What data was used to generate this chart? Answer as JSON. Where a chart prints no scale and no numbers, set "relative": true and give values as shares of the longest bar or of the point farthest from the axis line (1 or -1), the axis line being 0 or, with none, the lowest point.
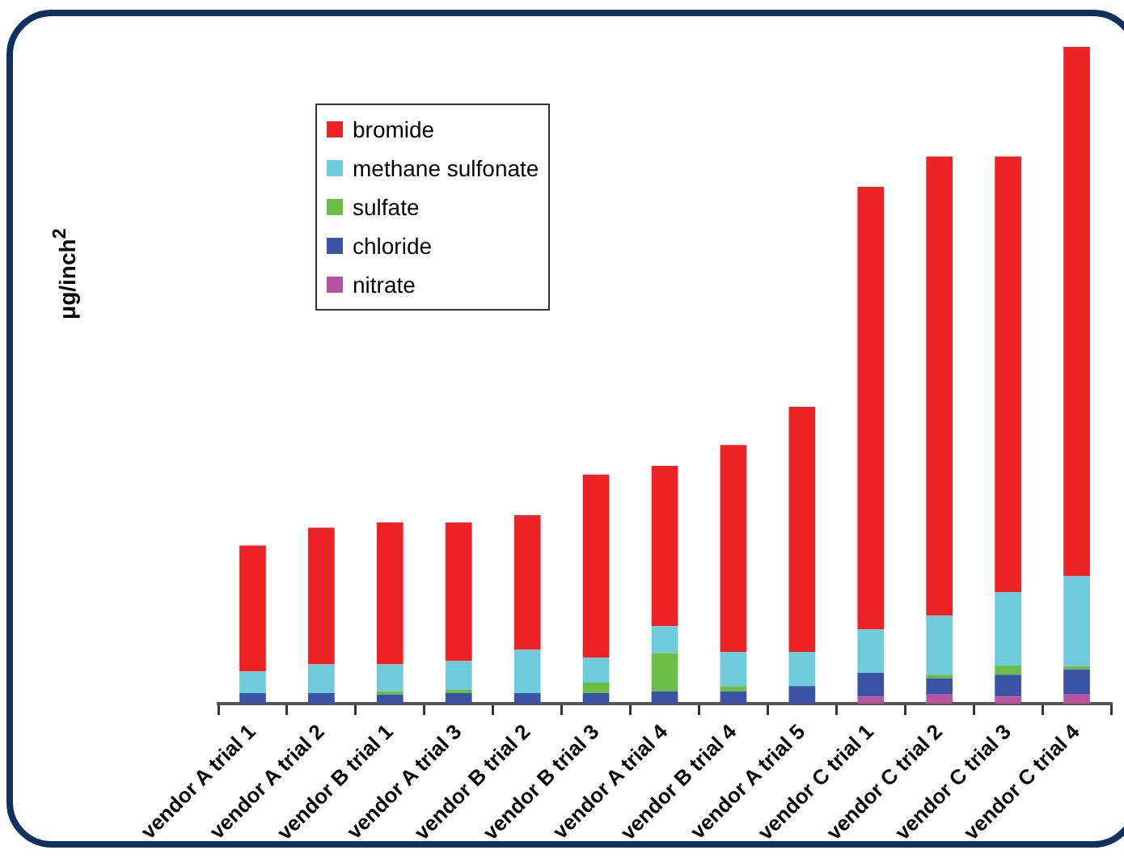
{
  "chart_data": {
    "type": "bar",
    "stacked": true,
    "relative": true,
    "ylabel": "μg/inch$^{2}$",
    "legend": "top left",
    "grid": false,
    "categories": [
      "vendor A trial 1",
      "vendor A trial 2",
      "vendor B trial 1",
      "vendor A trial 3",
      "vendor B trial 2",
      "vendor B trial 3",
      "vendor A trial 4",
      "vendor B trial 4",
      "vendor A trial 5",
      "vendor C trial 1",
      "vendor C trial 2",
      "vendor C trial 3",
      "vendor C trial 4"
    ],
    "series": [
      {
        "name": "nitrate",
        "color": "#b9529f",
        "values": [
          0,
          0,
          0,
          0,
          0,
          0,
          0,
          0,
          0,
          0.011,
          0.014,
          0.011,
          0.014
        ]
      },
      {
        "name": "chloride",
        "color": "#3a53a4",
        "values": [
          0.016,
          0.016,
          0.014,
          0.016,
          0.016,
          0.016,
          0.019,
          0.019,
          0.027,
          0.036,
          0.025,
          0.033,
          0.038
        ]
      },
      {
        "name": "sulfate",
        "color": "#6abd45",
        "values": [
          0,
          0,
          0.005,
          0.005,
          0,
          0.016,
          0.058,
          0.008,
          0,
          0,
          0.005,
          0.014,
          0.005
        ]
      },
      {
        "name": "methane sulfonate",
        "color": "#6ecbdc",
        "values": [
          0.033,
          0.044,
          0.041,
          0.044,
          0.066,
          0.038,
          0.041,
          0.052,
          0.052,
          0.066,
          0.09,
          0.112,
          0.137
        ]
      },
      {
        "name": "bromide",
        "color": "#ed2224",
        "values": [
          0.192,
          0.208,
          0.216,
          0.211,
          0.205,
          0.279,
          0.244,
          0.315,
          0.373,
          0.674,
          0.699,
          0.663,
          0.806
        ]
      }
    ]
  }
}
